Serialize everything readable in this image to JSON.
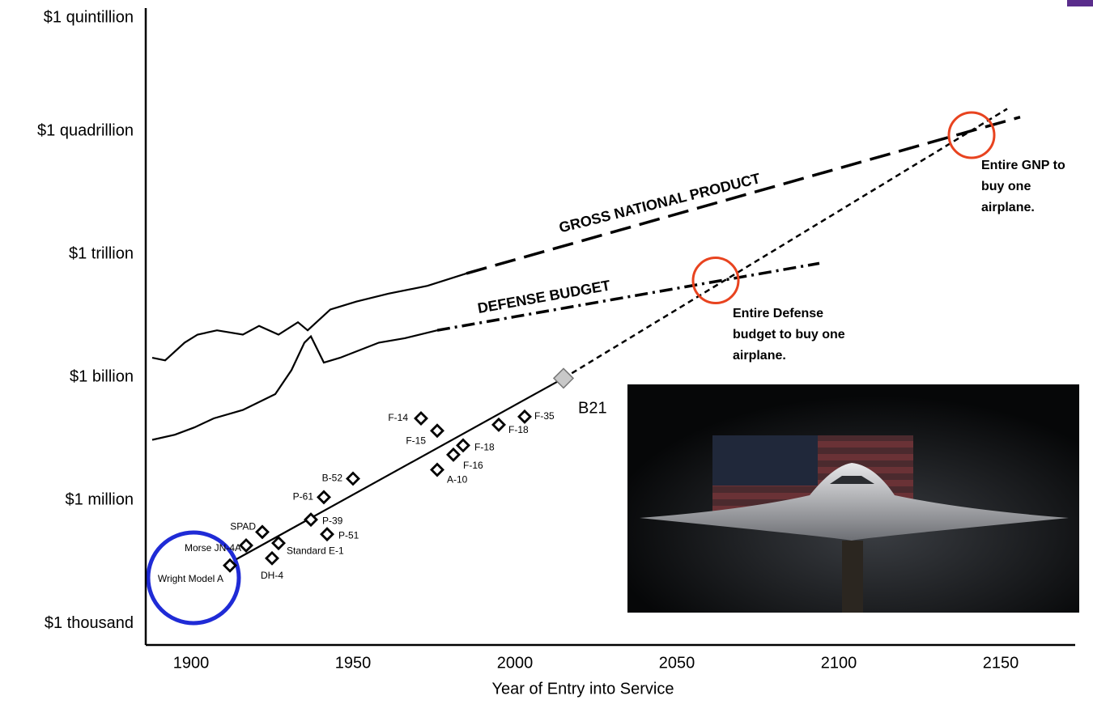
{
  "chart_data": {
    "type": "scatter",
    "x_label": "Year of Entry into Service",
    "log_y": true,
    "xlim": [
      1886,
      2173
    ],
    "ylim": [
      300,
      1e+18
    ],
    "xticks": [
      1900,
      1950,
      2000,
      2050,
      2100,
      2150
    ],
    "yticks": [
      {
        "value": 1000,
        "label": "$1 thousand"
      },
      {
        "value": 1000000.0,
        "label": "$1 million"
      },
      {
        "value": 1000000000.0,
        "label": "$1 billion"
      },
      {
        "value": 1000000000000.0,
        "label": "$1 trillion"
      },
      {
        "value": 1000000000000000.0,
        "label": "$1 quadrillion"
      },
      {
        "value": 1e+18,
        "label": "$1 quintillion"
      }
    ],
    "aircraft": [
      {
        "label": "Wright Model A",
        "year": 1912,
        "cost": 26000
      },
      {
        "label": "Morse JN-4A",
        "year": 1917,
        "cost": 80000
      },
      {
        "label": "SPAD",
        "year": 1922,
        "cost": 170000
      },
      {
        "label": "DH-4",
        "year": 1925,
        "cost": 39000
      },
      {
        "label": "Standard E-1",
        "year": 1927,
        "cost": 91000
      },
      {
        "label": "P-39",
        "year": 1937,
        "cost": 340000
      },
      {
        "label": "P-51",
        "year": 1942,
        "cost": 150000
      },
      {
        "label": "P-61",
        "year": 1941,
        "cost": 1200000
      },
      {
        "label": "B-52",
        "year": 1950,
        "cost": 3400000
      },
      {
        "label": "F-14",
        "year": 1971,
        "cost": 100000000
      },
      {
        "label": "F-15",
        "year": 1976,
        "cost": 50000000
      },
      {
        "label": "A-10",
        "year": 1976,
        "cost": 5600000
      },
      {
        "label": "F-16",
        "year": 1981,
        "cost": 13000000
      },
      {
        "label": "F-18",
        "year": 1984,
        "cost": 22000000
      },
      {
        "label": "F-18",
        "year": 1995,
        "cost": 70000000
      },
      {
        "label": "F-35",
        "year": 2003,
        "cost": 110000000
      },
      {
        "label": "B21",
        "year": 2015,
        "cost": 950000000
      }
    ],
    "lines": [
      {
        "name": "GROSS NATIONAL PRODUCT",
        "x": [
          1888,
          1892,
          1898,
          1902,
          1908,
          1916,
          1921,
          1927,
          1933,
          1936,
          1943,
          1951,
          1961,
          1973,
          1985
        ],
        "values": [
          3000000000.0,
          2600000000.0,
          7000000000.0,
          11000000000.0,
          14000000000.0,
          11000000000.0,
          18000000000.0,
          11000000000.0,
          22000000000.0,
          14000000000.0,
          45000000000.0,
          70000000000.0,
          110000000000.0,
          170000000000.0,
          340000000000.0
        ],
        "projection_x": [
          1985,
          2156
        ],
        "projection_values": [
          340000000000.0,
          2200000000000000.0
        ]
      },
      {
        "name": "DEFENSE BUDGET",
        "x": [
          1888,
          1895,
          1901,
          1907,
          1916,
          1926,
          1931,
          1935,
          1937,
          1941,
          1946,
          1958,
          1966,
          1976
        ],
        "values": [
          30000000.0,
          40000000.0,
          60000000.0,
          100000000.0,
          160000000.0,
          390000000.0,
          1500000000.0,
          7000000000.0,
          10000000000.0,
          2300000000.0,
          3000000000.0,
          7000000000.0,
          9000000000.0,
          14000000000.0
        ],
        "projection_x": [
          1976,
          2094
        ],
        "projection_values": [
          14000000000.0,
          600000000000.0
        ]
      }
    ],
    "trend": {
      "x": [
        1914,
        2015
      ],
      "values": [
        37000,
        950000000
      ],
      "projection_x": [
        2015,
        2152
      ],
      "projection_values": [
        950000000,
        3500000000000000.0
      ]
    },
    "annotations": [
      {
        "x": 2062,
        "value": 230000000000.0,
        "lines": [
          "Entire Defense",
          "budget to buy one",
          "airplane."
        ]
      },
      {
        "x": 2141,
        "value": 800000000000000.0,
        "lines": [
          "Entire GNP to",
          "buy one",
          "airplane."
        ]
      }
    ]
  }
}
